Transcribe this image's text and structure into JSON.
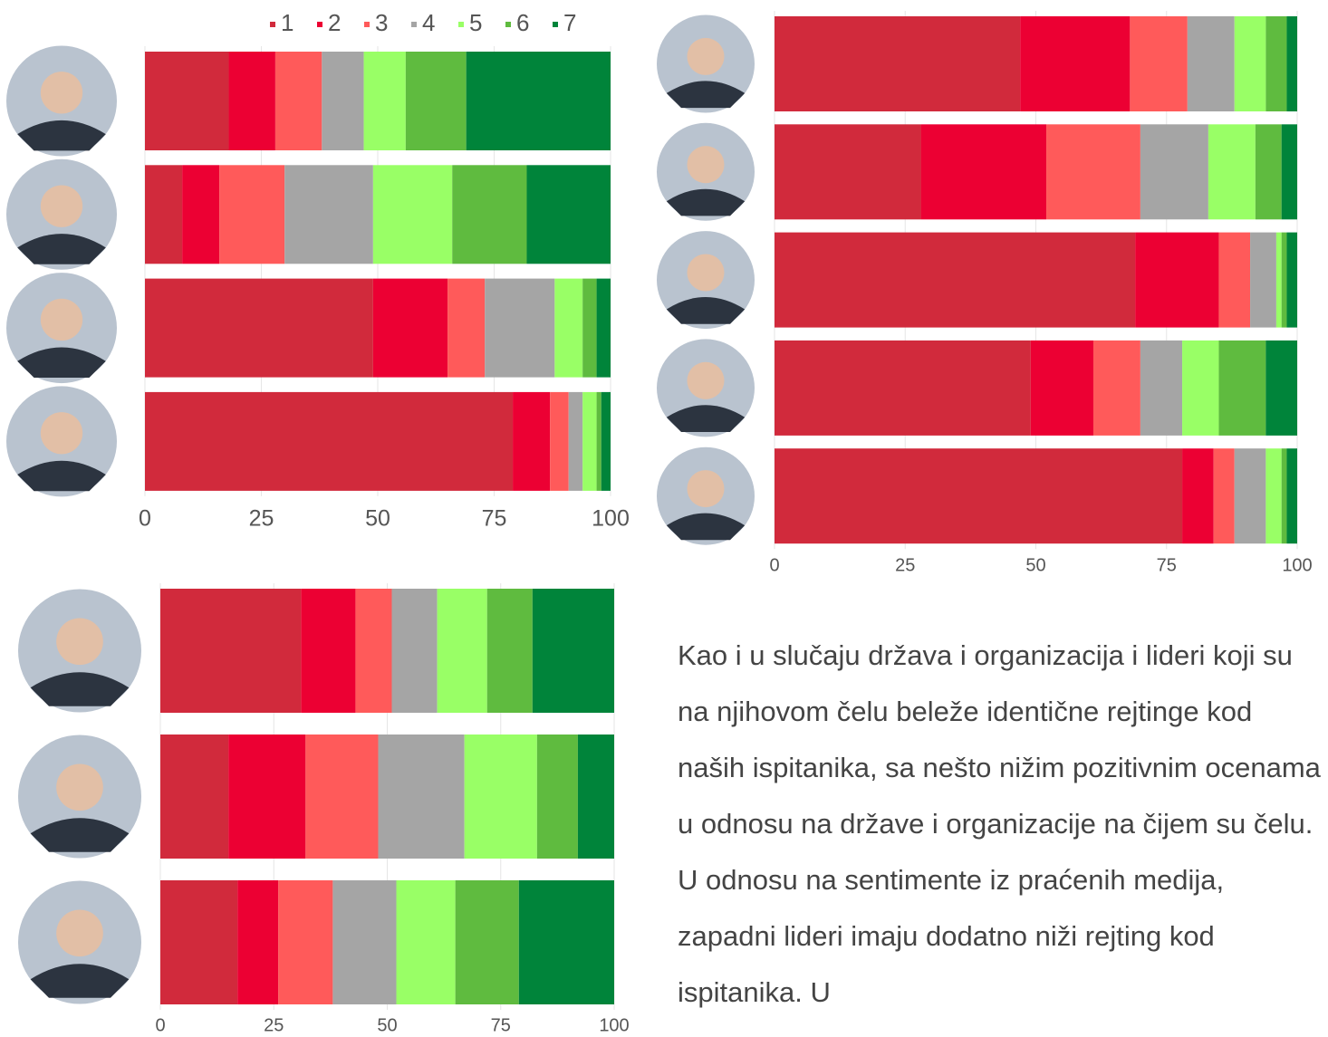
{
  "chart_data": [
    {
      "type": "bar",
      "orientation": "horizontal",
      "stacked": true,
      "legend": true,
      "grid": true,
      "categories": [
        null,
        null,
        null,
        null
      ],
      "series": [
        {
          "name": "1",
          "color": "#d12a3c",
          "values": [
            18,
            8,
            49,
            79
          ]
        },
        {
          "name": "2",
          "color": "#ec0033",
          "values": [
            10,
            8,
            16,
            8
          ]
        },
        {
          "name": "3",
          "color": "#ff5a5a",
          "values": [
            10,
            14,
            8,
            4
          ]
        },
        {
          "name": "4",
          "color": "#a5a5a5",
          "values": [
            9,
            19,
            15,
            3
          ]
        },
        {
          "name": "5",
          "color": "#99ff66",
          "values": [
            9,
            17,
            6,
            3
          ]
        },
        {
          "name": "6",
          "color": "#5fbb3f",
          "values": [
            13,
            16,
            3,
            1
          ]
        },
        {
          "name": "7",
          "color": "#00843a",
          "values": [
            31,
            18,
            3,
            2
          ]
        }
      ],
      "xlim": [
        0,
        100
      ],
      "xticks": [
        0,
        25,
        50,
        75,
        100
      ]
    },
    {
      "type": "bar",
      "orientation": "horizontal",
      "stacked": true,
      "legend": false,
      "grid": true,
      "categories": [
        null,
        null,
        null,
        null,
        null
      ],
      "series": [
        {
          "name": "1",
          "color": "#d12a3c",
          "values": [
            47,
            28,
            69,
            49,
            78
          ]
        },
        {
          "name": "2",
          "color": "#ec0033",
          "values": [
            21,
            24,
            16,
            12,
            6
          ]
        },
        {
          "name": "3",
          "color": "#ff5a5a",
          "values": [
            11,
            18,
            6,
            9,
            4
          ]
        },
        {
          "name": "4",
          "color": "#a5a5a5",
          "values": [
            9,
            13,
            5,
            8,
            6
          ]
        },
        {
          "name": "5",
          "color": "#99ff66",
          "values": [
            6,
            9,
            1,
            7,
            3
          ]
        },
        {
          "name": "6",
          "color": "#5fbb3f",
          "values": [
            4,
            5,
            1,
            9,
            1
          ]
        },
        {
          "name": "7",
          "color": "#00843a",
          "values": [
            2,
            3,
            2,
            6,
            2
          ]
        }
      ],
      "xlim": [
        0,
        100
      ],
      "xticks": [
        0,
        25,
        50,
        75,
        100
      ]
    },
    {
      "type": "bar",
      "orientation": "horizontal",
      "stacked": true,
      "legend": false,
      "grid": true,
      "categories": [
        null,
        null,
        null
      ],
      "series": [
        {
          "name": "1",
          "color": "#d12a3c",
          "values": [
            31,
            15,
            17
          ]
        },
        {
          "name": "2",
          "color": "#ec0033",
          "values": [
            12,
            17,
            9
          ]
        },
        {
          "name": "3",
          "color": "#ff5a5a",
          "values": [
            8,
            16,
            12
          ]
        },
        {
          "name": "4",
          "color": "#a5a5a5",
          "values": [
            10,
            19,
            14
          ]
        },
        {
          "name": "5",
          "color": "#99ff66",
          "values": [
            11,
            16,
            13
          ]
        },
        {
          "name": "6",
          "color": "#5fbb3f",
          "values": [
            10,
            9,
            14
          ]
        },
        {
          "name": "7",
          "color": "#00843a",
          "values": [
            18,
            8,
            21
          ]
        }
      ],
      "xlim": [
        0,
        100
      ],
      "xticks": [
        0,
        25,
        50,
        75,
        100
      ]
    }
  ],
  "paragraph": "Kao i u slučaju država i organizacija i lideri koji su na njihovom čelu beleže identične rejtinge kod naših ispitanika, sa nešto nižim pozitivnim ocenama u odnosu na države i organizacije na čijem su čelu. U odnosu na sentimente iz praćenih medija, zapadni lideri imaju dodatno niži rejting kod ispitanika. U"
}
